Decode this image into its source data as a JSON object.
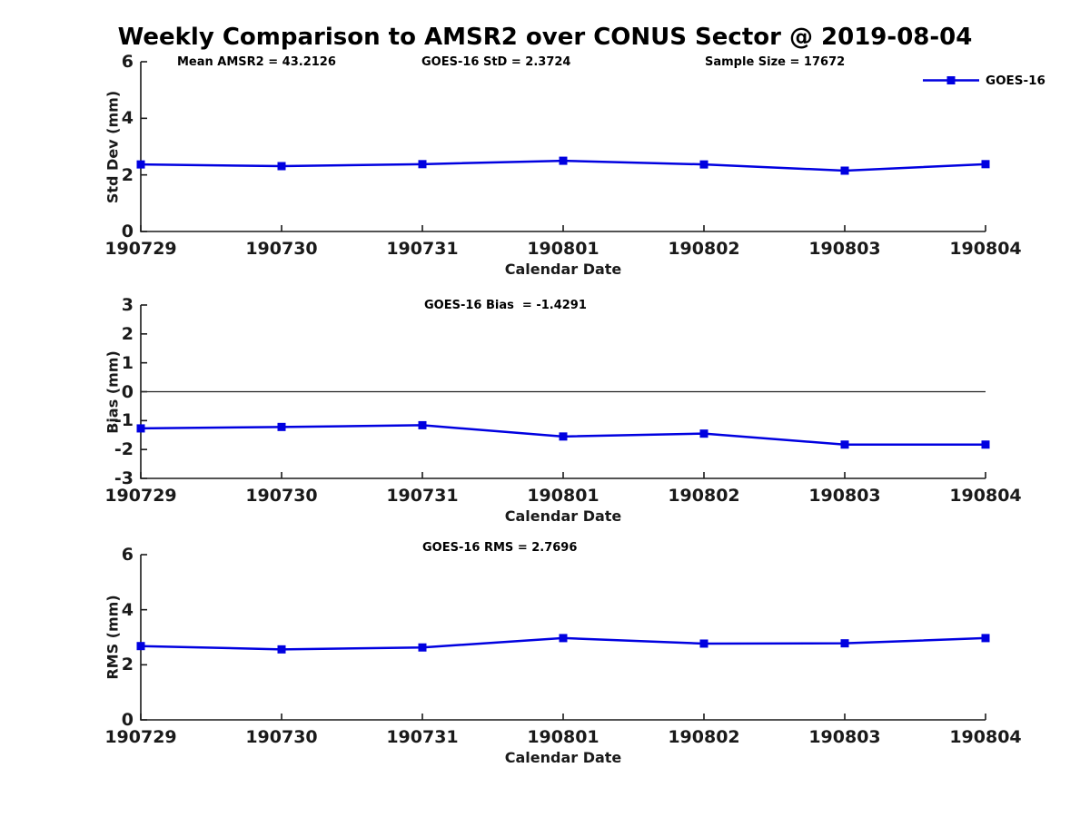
{
  "page": {
    "title": "Weekly Comparison to AMSR2 over CONUS Sector @ 2019-08-04",
    "background": "#ffffff"
  },
  "colors": {
    "line": "#0000e0",
    "axis": "#1a1a1a",
    "zero_line": "#222222",
    "text": "#000000"
  },
  "legend": {
    "label": "GOES-16"
  },
  "chart_data": [
    {
      "type": "line",
      "name": "std-dev-panel",
      "annotations": [
        "Mean AMSR2 = 43.2126",
        "GOES-16 StD = 2.3724",
        "Sample Size = 17672"
      ],
      "xlabel": "Calendar Date",
      "ylabel": "Std Dev (mm)",
      "categories": [
        "190729",
        "190730",
        "190731",
        "190801",
        "190802",
        "190803",
        "190804"
      ],
      "series": [
        {
          "name": "GOES-16",
          "values": [
            2.37,
            2.31,
            2.38,
            2.5,
            2.37,
            2.15,
            2.38
          ]
        }
      ],
      "ylim": [
        0,
        6
      ],
      "y_ticks": [
        0,
        2,
        4,
        6
      ],
      "grid": false,
      "zero_line": false,
      "legend_position": "top-right"
    },
    {
      "type": "line",
      "name": "bias-panel",
      "annotations": [
        "GOES-16 Bias  = -1.4291"
      ],
      "xlabel": "Calendar Date",
      "ylabel": "Bias (mm)",
      "categories": [
        "190729",
        "190730",
        "190731",
        "190801",
        "190802",
        "190803",
        "190804"
      ],
      "series": [
        {
          "name": "GOES-16",
          "values": [
            -1.27,
            -1.22,
            -1.16,
            -1.55,
            -1.45,
            -1.83,
            -1.83
          ]
        }
      ],
      "ylim": [
        -3,
        3
      ],
      "y_ticks": [
        -3,
        -2,
        -1,
        0,
        1,
        2,
        3
      ],
      "grid": false,
      "zero_line": true,
      "legend_position": "none"
    },
    {
      "type": "line",
      "name": "rms-panel",
      "annotations": [
        "GOES-16 RMS = 2.7696"
      ],
      "xlabel": "Calendar Date",
      "ylabel": "RMS (mm)",
      "categories": [
        "190729",
        "190730",
        "190731",
        "190801",
        "190802",
        "190803",
        "190804"
      ],
      "series": [
        {
          "name": "GOES-16",
          "values": [
            2.68,
            2.56,
            2.63,
            2.97,
            2.77,
            2.78,
            2.97
          ]
        }
      ],
      "ylim": [
        0,
        6
      ],
      "y_ticks": [
        0,
        2,
        4,
        6
      ],
      "grid": false,
      "zero_line": false,
      "legend_position": "none"
    }
  ]
}
